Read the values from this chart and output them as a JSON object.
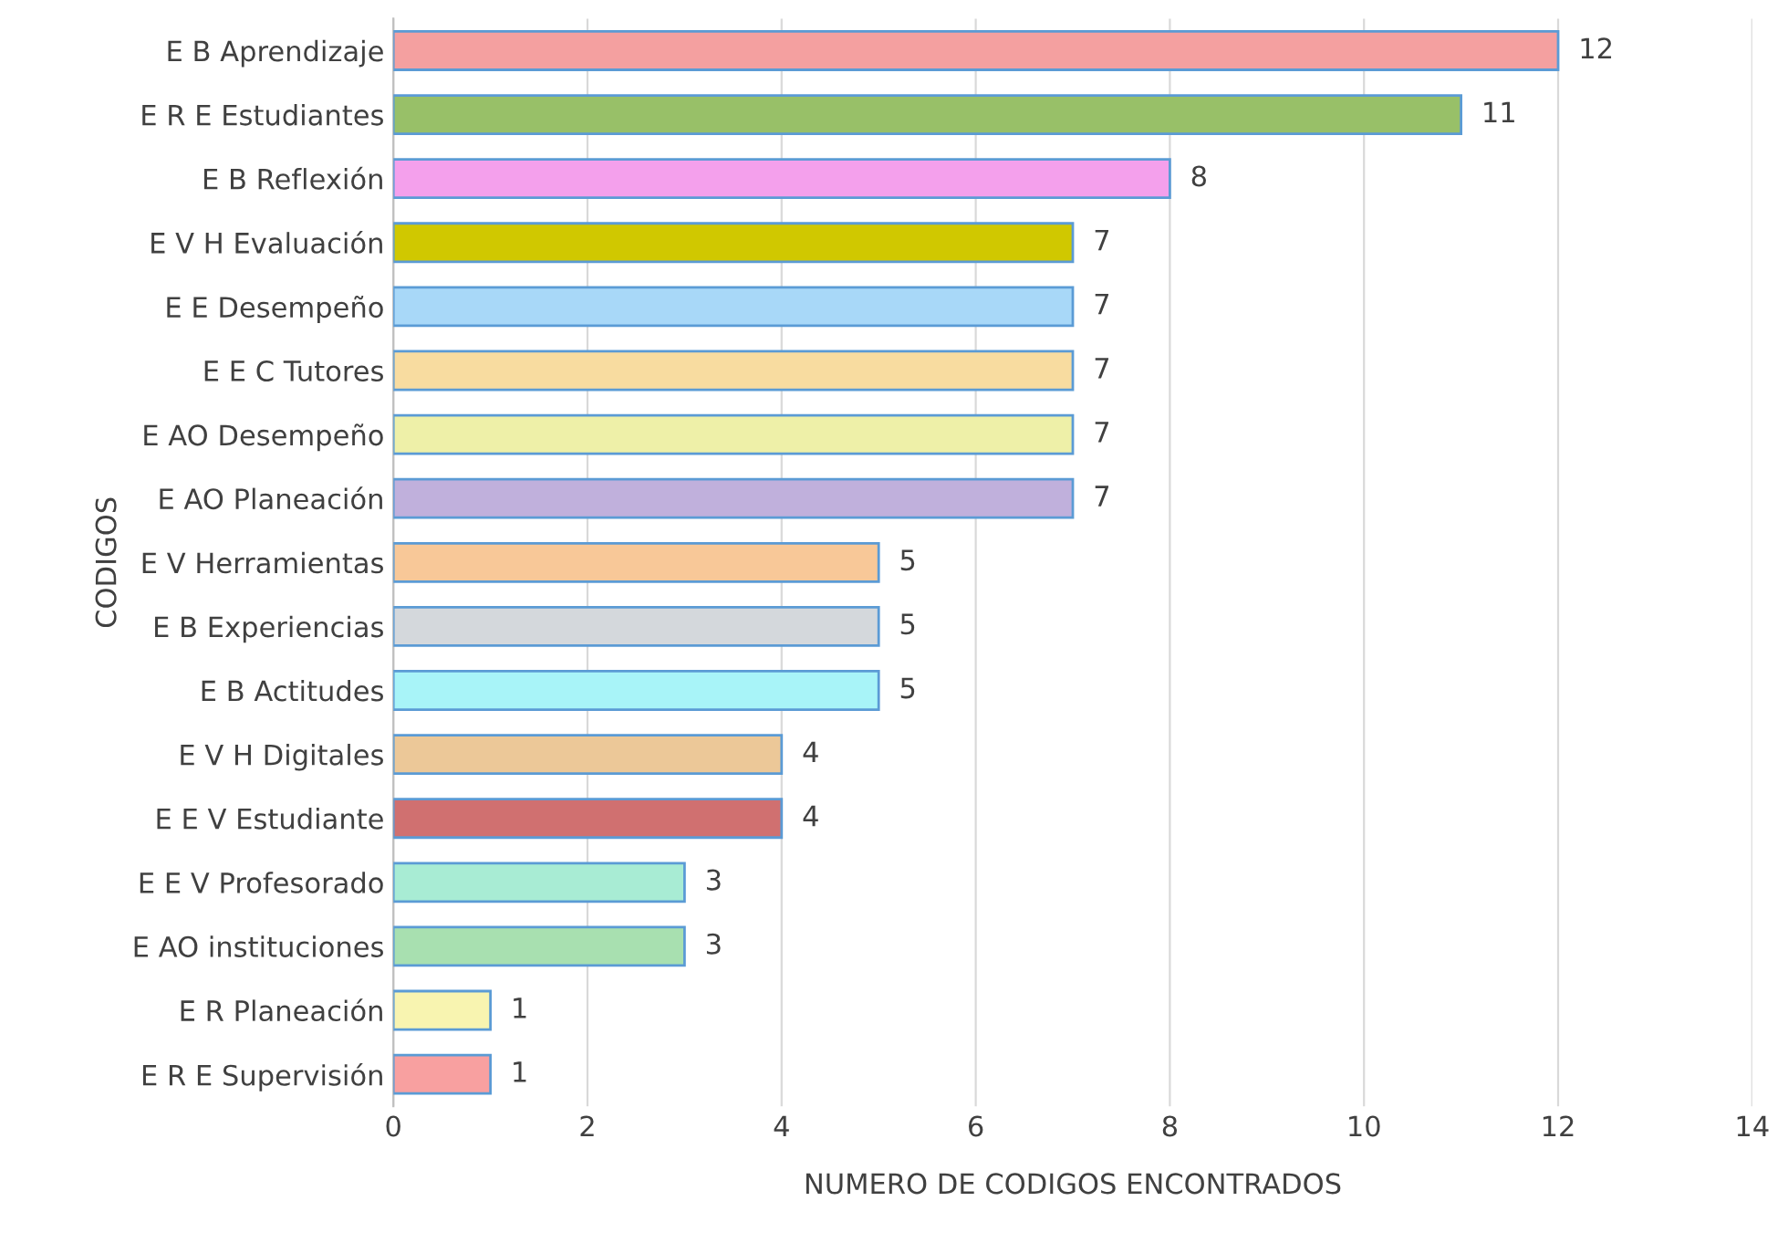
{
  "chart_data": {
    "type": "bar",
    "orientation": "horizontal",
    "xlabel": "NUMERO DE CODIGOS ENCONTRADOS",
    "ylabel": "CODIGOS",
    "categories": [
      "E B Aprendizaje",
      "E R E Estudiantes",
      "E B Reflexión",
      "E V H Evaluación",
      "E E Desempeño",
      "E E C Tutores",
      "E AO Desempeño",
      "E AO Planeación",
      "E V Herramientas",
      "E B Experiencias",
      "E B Actitudes",
      "E V H Digitales",
      "E E V Estudiante",
      "E E V Profesorado",
      "E AO instituciones",
      "E R Planeación",
      "E R E Supervisión"
    ],
    "values": [
      12,
      11,
      8,
      7,
      7,
      7,
      7,
      7,
      5,
      5,
      5,
      4,
      4,
      3,
      3,
      1,
      1
    ],
    "colors": [
      "#f4a0a0",
      "#98c068",
      "#f4a0ec",
      "#d0c800",
      "#a8d8f8",
      "#f8dca0",
      "#eef0a8",
      "#c0b0dc",
      "#f8c898",
      "#d4d8dc",
      "#a8f4f8",
      "#ecc898",
      "#d07070",
      "#a8ecd4",
      "#a8e0b0",
      "#f8f4b0",
      "#f8a0a0"
    ],
    "data_labels": true,
    "xlim": [
      0,
      14
    ],
    "xticks": [
      0,
      2,
      4,
      6,
      8,
      10,
      12,
      14
    ],
    "grid": "x",
    "legend": false
  }
}
